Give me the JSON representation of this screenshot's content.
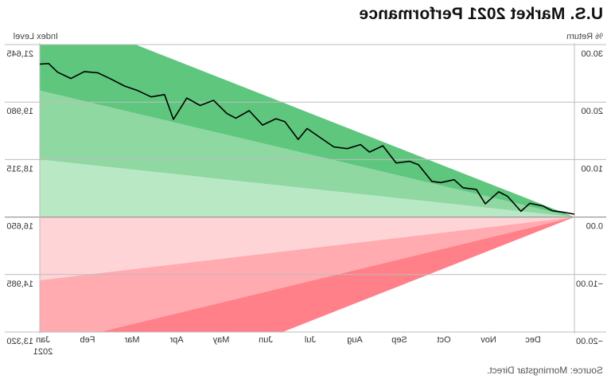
{
  "header": {
    "title": "U.S. Market 2021 Performance"
  },
  "source": "Source: Morningstar Direct.",
  "chart_data": {
    "type": "line",
    "title": "U.S. Market 2021 Performance",
    "ylabel": "% Return",
    "ylabel_right": "Index Level",
    "ylim": [
      -20,
      30
    ],
    "grid": true,
    "y_ticks": [
      "30.00",
      "20.00",
      "10.00",
      "0.00",
      "−10.00",
      "−20.00"
    ],
    "y_right_ticks": [
      "21,645",
      "19,980",
      "18,315",
      "16,650",
      "14,985",
      "13,320"
    ],
    "x_ticks": [
      "Jan",
      "Feb",
      "Mar",
      "Apr",
      "May",
      "Jun",
      "Jul",
      "Aug",
      "Sep",
      "Oct",
      "Nov",
      "Dec"
    ],
    "x_year_label": "2021",
    "band_colors": {
      "green_dark": "#5fc67e",
      "green_mid": "#8fd8a2",
      "green_light": "#b8e8c4",
      "red_light": "#ffd4d6",
      "red_mid": "#ffabb0",
      "red_dark": "#ff8088"
    },
    "line_color": "#000000",
    "series": [
      {
        "x": [
          0,
          0.3,
          0.5,
          0.7,
          1,
          1.2,
          1.5,
          1.7,
          2,
          2.2,
          2.5,
          2.7,
          3,
          3.2,
          3.5,
          3.7,
          4,
          4.3,
          4.6,
          4.8,
          5.1,
          5.4,
          5.7,
          6,
          6.2,
          6.5,
          6.7,
          7,
          7.3,
          7.6,
          7.8,
          8.1,
          8.4,
          8.7,
          9,
          9.2,
          9.5,
          9.8,
          10.1,
          10.4,
          10.7,
          11,
          11.3,
          11.6,
          11.8,
          12
        ],
        "y": [
          0.5,
          0.9,
          1.1,
          1.9,
          2.4,
          1.0,
          3.6,
          4.4,
          2.3,
          4.8,
          5.1,
          6.5,
          6.0,
          6.2,
          9.1,
          9.7,
          9.4,
          12.4,
          11.3,
          12.6,
          11.9,
          12.2,
          13.8,
          15.4,
          13.5,
          16.6,
          17.1,
          16.0,
          18.5,
          17.2,
          18.0,
          20.3,
          19.4,
          20.7,
          17.0,
          21.3,
          20.9,
          22.0,
          22.8,
          24.0,
          25.1,
          25.3,
          24.1,
          25.2,
          26.7,
          26.6
        ]
      }
    ]
  }
}
